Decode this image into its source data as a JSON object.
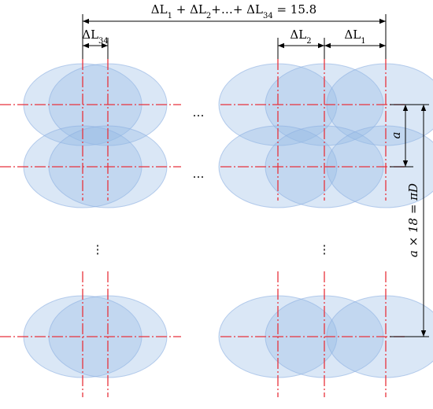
{
  "dimensions": {
    "total": [
      "ΔL",
      "1",
      " + ΔL",
      "2",
      "+…+ ΔL",
      "34",
      " = 15.8"
    ],
    "pitch_first": [
      "ΔL",
      "34"
    ],
    "pitch_2": [
      "ΔL",
      "2"
    ],
    "pitch_1": [
      "ΔL",
      "1"
    ],
    "row_pitch": "a",
    "circumference": "a × 18 = πD"
  },
  "ellipsis": {
    "row_1": "…",
    "row_2": "…",
    "column_left": "⋮",
    "column_right": "⋮"
  }
}
